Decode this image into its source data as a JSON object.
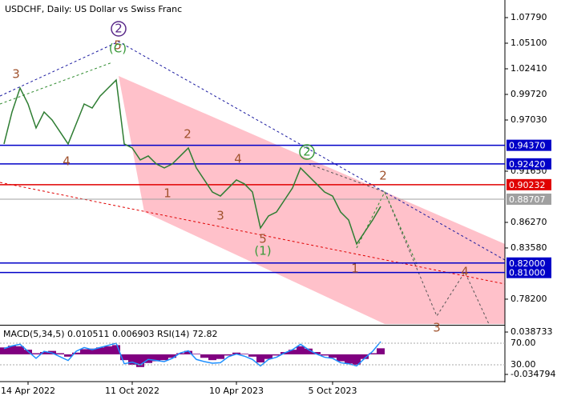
{
  "chart_data": {
    "type": "line",
    "title": "USDCHF, Daily:  US Dollar vs Swiss Franc",
    "color": "#2e7d32",
    "categories": [
      null,
      null,
      null,
      "14 Apr 2022",
      null,
      null,
      null,
      null,
      null,
      null,
      null,
      null,
      null,
      null,
      null,
      null,
      "11 Oct 2022",
      null,
      null,
      null,
      null,
      null,
      null,
      null,
      null,
      null,
      null,
      null,
      null,
      "10 Apr 2023",
      null,
      null,
      null,
      null,
      null,
      null,
      null,
      null,
      null,
      null,
      null,
      "5 Oct 2023",
      null,
      null,
      null,
      null,
      null,
      null
    ],
    "values": [
      0.9451,
      0.9787,
      1.0039,
      0.9871,
      0.9619,
      0.9787,
      0.9703,
      0.9577,
      0.9451,
      0.9661,
      0.9871,
      0.9829,
      0.9955,
      1.0039,
      1.0123,
      0.9451,
      0.9409,
      0.9283,
      0.9325,
      0.9241,
      0.9199,
      0.9241,
      0.9325,
      0.9409,
      0.9199,
      0.9073,
      0.8946,
      0.8904,
      0.8989,
      0.9073,
      0.9031,
      0.8946,
      0.8568,
      0.8694,
      0.8736,
      0.8862,
      0.8989,
      0.9199,
      0.9115,
      0.9031,
      0.8946,
      0.8904,
      0.8736,
      0.8652,
      0.84,
      0.8526,
      0.8652,
      0.8795
    ],
    "ylim": [
      0.7559,
      1.0922
    ],
    "yticks": [
      {
        "value": 1.0779,
        "label": "1.07790"
      },
      {
        "value": 1.051,
        "label": "1.05100"
      },
      {
        "value": 1.0241,
        "label": "1.02410"
      },
      {
        "value": 0.9972,
        "label": "0.99720"
      },
      {
        "value": 0.9703,
        "label": "0.97030"
      },
      {
        "value": 0.9165,
        "label": "0.91650"
      },
      {
        "value": 0.8627,
        "label": "0.86270"
      },
      {
        "value": 0.8358,
        "label": "0.83580"
      },
      {
        "value": 0.782,
        "label": "0.78200"
      }
    ],
    "levels": [
      {
        "value": 0.9437,
        "label": "0.94370",
        "color": "#0000c8"
      },
      {
        "value": 0.9242,
        "label": "0.92420",
        "color": "#0000c8"
      },
      {
        "value": 0.90232,
        "label": "0.90232",
        "color": "#e00000"
      },
      {
        "value": 0.88707,
        "label": "0.88707",
        "color": "#a0a0a0"
      },
      {
        "value": 0.82,
        "label": "0.82000",
        "color": "#0000c8"
      },
      {
        "value": 0.81,
        "label": "0.81000",
        "color": "#0000c8"
      }
    ],
    "annotations": [
      {
        "text": "3"
      },
      {
        "text": "4"
      },
      {
        "text": "5"
      },
      {
        "text": "(C)"
      },
      {
        "text": "2"
      },
      {
        "text": "2"
      },
      {
        "text": "1"
      },
      {
        "text": "3"
      },
      {
        "text": "4"
      },
      {
        "text": "5"
      },
      {
        "text": "(1)"
      },
      {
        "text": "2"
      },
      {
        "text": "2"
      },
      {
        "text": "1"
      },
      {
        "text": "4"
      },
      {
        "text": "3"
      }
    ],
    "indicator": {
      "label": "MACD(5,34,5) 0.010511 0.006903 RSI(14) 72.82",
      "macd_color": "#800080",
      "rsi_color": "#1e90ff",
      "macd": [
        0.012,
        0.015,
        0.014,
        0.008,
        0.002,
        0.004,
        0.006,
        0.002,
        -0.004,
        0.003,
        0.009,
        0.01,
        0.012,
        0.014,
        0.016,
        -0.01,
        -0.018,
        -0.022,
        -0.015,
        -0.012,
        -0.01,
        -0.006,
        0.002,
        0.006,
        0.001,
        -0.006,
        -0.01,
        -0.008,
        -0.002,
        0.003,
        0.001,
        -0.004,
        -0.014,
        -0.008,
        -0.002,
        0.004,
        0.008,
        0.014,
        0.01,
        0.004,
        -0.002,
        -0.006,
        -0.012,
        -0.016,
        -0.018,
        -0.008,
        0.002,
        0.010511
      ],
      "rsi": [
        60,
        65,
        68,
        55,
        42,
        55,
        52,
        45,
        38,
        55,
        62,
        58,
        62,
        66,
        70,
        32,
        35,
        30,
        40,
        38,
        36,
        42,
        52,
        56,
        40,
        36,
        33,
        34,
        45,
        50,
        46,
        40,
        28,
        40,
        44,
        52,
        58,
        68,
        58,
        50,
        44,
        42,
        34,
        32,
        28,
        42,
        55,
        72.82
      ],
      "ylim": [
        -0.0445,
        0.0485
      ],
      "yticks": [
        0.038733,
        -0.034794
      ],
      "rsi_ylim": [
        2,
        101
      ],
      "rsi_ticks": [
        {
          "value": 70,
          "label": "70.00"
        },
        {
          "value": 30,
          "label": "30.00"
        }
      ]
    }
  }
}
